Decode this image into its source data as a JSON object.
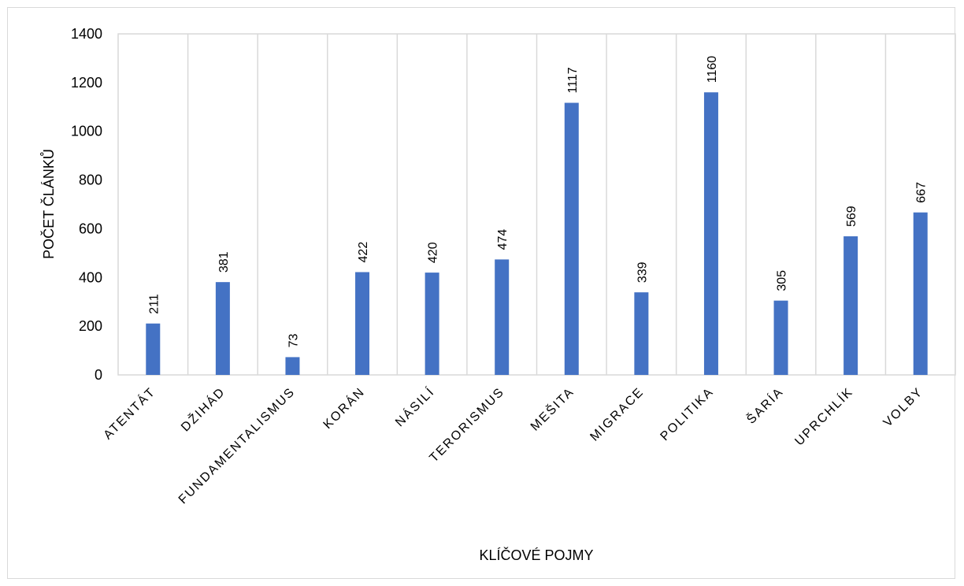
{
  "chart_data": {
    "type": "bar",
    "categories": [
      "ATENTÁT",
      "DŽIHÁD",
      "FUNDAMENTALISMUS",
      "KORÁN",
      "NÁSILÍ",
      "TERORISMUS",
      "MEŠITA",
      "MIGRACE",
      "POLITIKA",
      "ŠARÍA",
      "UPRCHLÍK",
      "VOLBY"
    ],
    "values": [
      211,
      381,
      73,
      422,
      420,
      474,
      1117,
      339,
      1160,
      305,
      569,
      667
    ],
    "title": "",
    "xlabel": "KLÍČOVÉ POJMY",
    "ylabel": "POČET ČLÁNKŮ",
    "ylim": [
      0,
      1400
    ],
    "yticks": [
      0,
      200,
      400,
      600,
      800,
      1000,
      1200,
      1400
    ],
    "grid": "vertical",
    "data_labels": true,
    "bar_color": "#4472C4",
    "legend": "none"
  }
}
